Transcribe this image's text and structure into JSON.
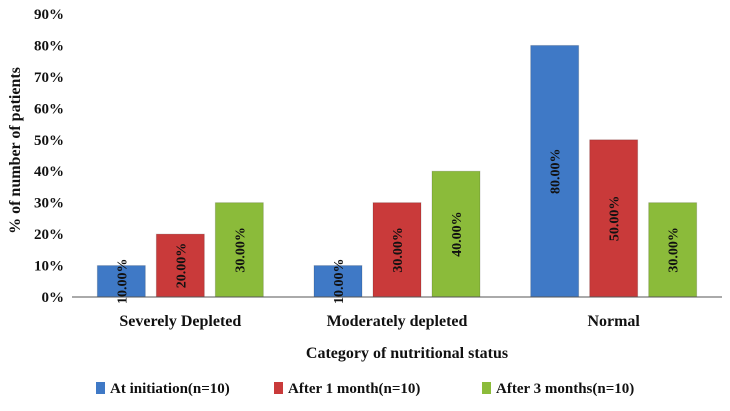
{
  "chart_data": {
    "type": "bar",
    "categories": [
      "Severely Depleted",
      "Moderately depleted",
      "Normal"
    ],
    "series": [
      {
        "name": "At initiation(n=10)",
        "values": [
          10,
          10,
          80
        ],
        "labels": [
          "10.00%",
          "10.00%",
          "80.00%"
        ],
        "color": "#3f79c6"
      },
      {
        "name": "After 1 month(n=10)",
        "values": [
          20,
          30,
          50
        ],
        "labels": [
          "20.00%",
          "30.00%",
          "50.00%"
        ],
        "color": "#c93a3a"
      },
      {
        "name": "After 3 months(n=10)",
        "values": [
          30,
          40,
          30
        ],
        "labels": [
          "30.00%",
          "40.00%",
          "30.00%"
        ],
        "color": "#8bbb3a"
      }
    ],
    "xlabel": "Category of nutritional status",
    "ylabel": "% of number of patients",
    "ylim": [
      0,
      90
    ],
    "yticks": [
      "0%",
      "10%",
      "20%",
      "30%",
      "40%",
      "50%",
      "60%",
      "70%",
      "80%",
      "90%"
    ],
    "grid": false,
    "legend": "bottom"
  }
}
